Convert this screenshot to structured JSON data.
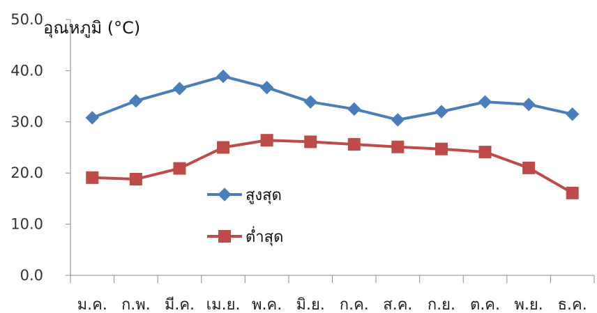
{
  "chart_data": {
    "type": "line",
    "title": "",
    "ylabel": "อุณหภูมิ (°C)",
    "xlabel": "",
    "ylim": [
      0,
      50
    ],
    "yticks": [
      "0.0",
      "10.0",
      "20.0",
      "30.0",
      "40.0",
      "50.0"
    ],
    "categories": [
      "ม.ค.",
      "ก.พ.",
      "มี.ค.",
      "เม.ย.",
      "พ.ค.",
      "มิ.ย.",
      "ก.ค.",
      "ส.ค.",
      "ก.ย.",
      "ต.ค.",
      "พ.ย.",
      "ธ.ค."
    ],
    "grid": false,
    "legend": "center-left",
    "series": [
      {
        "name": "สูงสุด",
        "marker": "diamond",
        "color": "#4a7ebb",
        "values": [
          30.8,
          34.1,
          36.5,
          38.9,
          36.7,
          33.9,
          32.5,
          30.4,
          32.0,
          33.9,
          33.4,
          31.5
        ]
      },
      {
        "name": "ต่ำสุด",
        "marker": "square",
        "color": "#be4b48",
        "values": [
          19.1,
          18.8,
          20.9,
          25.0,
          26.4,
          26.1,
          25.6,
          25.1,
          24.7,
          24.1,
          21.0,
          16.1
        ]
      }
    ]
  }
}
